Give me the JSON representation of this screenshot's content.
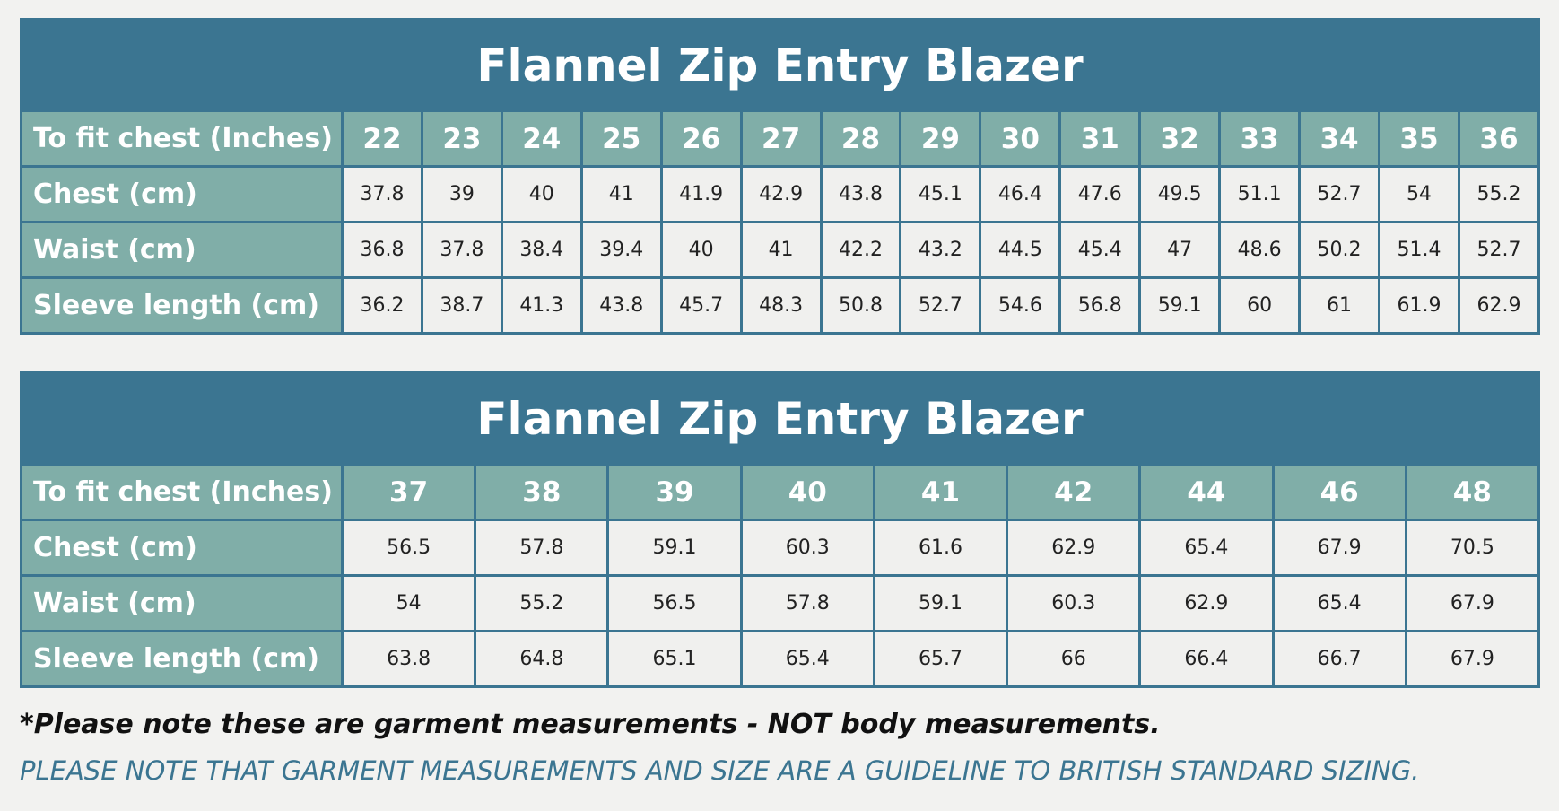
{
  "tables": [
    {
      "title": "Flannel Zip Entry Blazer",
      "header": {
        "label": "To fit chest (Inches)",
        "sizes": [
          22,
          23,
          24,
          25,
          26,
          27,
          28,
          29,
          30,
          31,
          32,
          33,
          34,
          35,
          36
        ]
      },
      "rows": [
        {
          "label": "Chest (cm)",
          "values": [
            37.8,
            39,
            40,
            41,
            41.9,
            42.9,
            43.8,
            45.1,
            46.4,
            47.6,
            49.5,
            51.1,
            52.7,
            54,
            55.2
          ]
        },
        {
          "label": "Waist (cm)",
          "values": [
            36.8,
            37.8,
            38.4,
            39.4,
            40,
            41,
            42.2,
            43.2,
            44.5,
            45.4,
            47,
            48.6,
            50.2,
            51.4,
            52.7
          ]
        },
        {
          "label": "Sleeve length (cm)",
          "values": [
            36.2,
            38.7,
            41.3,
            43.8,
            45.7,
            48.3,
            50.8,
            52.7,
            54.6,
            56.8,
            59.1,
            60,
            61,
            61.9,
            62.9
          ]
        }
      ]
    },
    {
      "title": "Flannel Zip Entry Blazer",
      "header": {
        "label": "To fit chest (Inches)",
        "sizes": [
          37,
          38,
          39,
          40,
          41,
          42,
          44,
          46,
          48
        ]
      },
      "rows": [
        {
          "label": "Chest (cm)",
          "values": [
            56.5,
            57.8,
            59.1,
            60.3,
            61.6,
            62.9,
            65.4,
            67.9,
            70.5
          ]
        },
        {
          "label": "Waist (cm)",
          "values": [
            54,
            55.2,
            56.5,
            57.8,
            59.1,
            60.3,
            62.9,
            65.4,
            67.9
          ]
        },
        {
          "label": "Sleeve length (cm)",
          "values": [
            63.8,
            64.8,
            65.1,
            65.4,
            65.7,
            66,
            66.4,
            66.7,
            67.9
          ]
        }
      ]
    }
  ],
  "notes": [
    "*Please note these are garment measurements - NOT body measurements.",
    "PLEASE NOTE THAT GARMENT MEASUREMENTS AND SIZE ARE A GUIDELINE TO BRITISH STANDARD SIZING."
  ]
}
